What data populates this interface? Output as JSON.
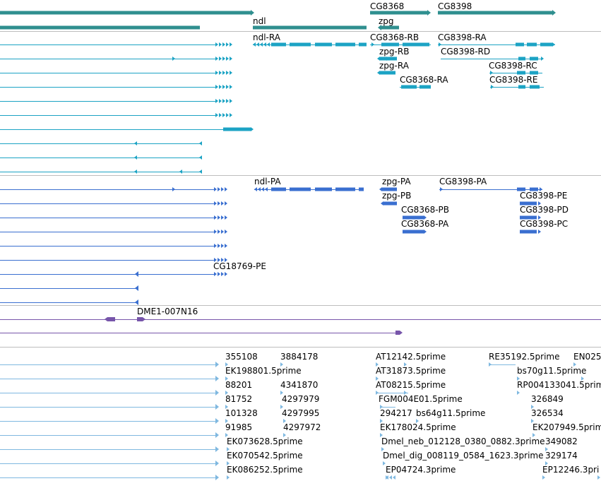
{
  "tracks": {
    "gene": {
      "color": "#2f8f8f",
      "labels": [
        "CG8368",
        "CG8398",
        "ndl",
        "zpg"
      ]
    },
    "transcript_rna": {
      "color": "#1ca3c4",
      "labels": [
        "ndl-RA",
        "CG8368-RB",
        "CG8398-RA",
        "zpg-RB",
        "CG8398-RD",
        "zpg-RA",
        "CG8398-RC",
        "CG8368-RA",
        "CG8398-RE"
      ]
    },
    "protein": {
      "color": "#3a6fd0",
      "labels": [
        "ndl-PA",
        "zpg-PA",
        "CG8398-PA",
        "zpg-PB",
        "CG8398-PE",
        "CG8368-PB",
        "CG8398-PD",
        "CG8368-PA",
        "CG8398-PC",
        "CG18769-PE"
      ]
    },
    "insertion": {
      "color": "#7755aa",
      "labels": [
        "DME1-007N16"
      ]
    },
    "est": {
      "color": "#7fb8e0",
      "labels": [
        "355108",
        "3884178",
        "AT12142.5prime",
        "RE35192.5prime",
        "EN025",
        "EK198801.5prime",
        "AT31873.5prime",
        "bs70g11.5prime",
        "88201",
        "4341870",
        "AT08215.5prime",
        "RP004133041.5prim",
        "81752",
        "4297979",
        "FGM004E01.5prime",
        "326849",
        "101328",
        "4297995",
        "294217",
        "bs64g11.5prime",
        "326534",
        "91985",
        "4297972",
        "EK178024.5prime",
        "EK207949.5prim",
        "EK073628.5prime",
        "Dmel_neb_012128_0380_0882.3prime",
        "349082",
        "EK070542.5prime",
        "Dmel_dig_008119_0584_1623.3prime",
        "329174",
        "EK086252.5prime",
        "EP04724.3prime",
        "EP12246.3pri"
      ]
    }
  }
}
